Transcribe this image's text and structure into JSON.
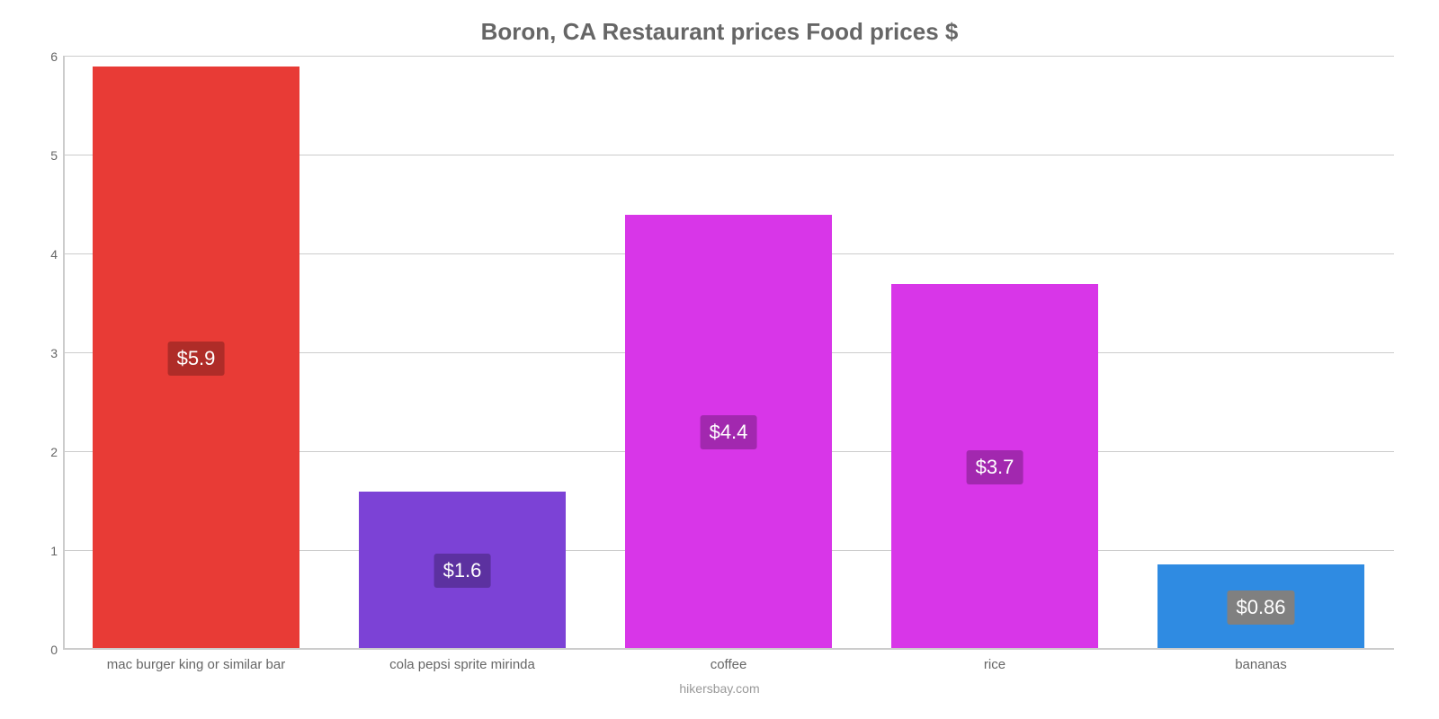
{
  "chart": {
    "type": "bar",
    "title": "Boron, CA Restaurant prices Food prices $",
    "footer": "hikersbay.com",
    "background_color": "#ffffff",
    "grid_color": "#cccccc",
    "text_color": "#666666",
    "title_fontsize": 26,
    "label_fontsize": 15,
    "value_label_fontsize": 22,
    "y": {
      "min": 0,
      "max": 6,
      "ticks": [
        0,
        1,
        2,
        3,
        4,
        5,
        6
      ]
    },
    "bars": [
      {
        "category": "mac burger king or similar bar",
        "value": 5.9,
        "display": "$5.9",
        "fill": "#e83b36",
        "label_bg": "#af2c28"
      },
      {
        "category": "cola pepsi sprite mirinda",
        "value": 1.6,
        "display": "$1.6",
        "fill": "#7c42d6",
        "label_bg": "#5c31a0"
      },
      {
        "category": "coffee",
        "value": 4.4,
        "display": "$4.4",
        "fill": "#d836e8",
        "label_bg": "#a228af"
      },
      {
        "category": "rice",
        "value": 3.7,
        "display": "$3.7",
        "fill": "#d836e8",
        "label_bg": "#a228af"
      },
      {
        "category": "bananas",
        "value": 0.86,
        "display": "$0.86",
        "fill": "#2f8be2",
        "label_bg": "#808080"
      }
    ],
    "bar_width_pct": 78,
    "value_label_vpos": 0.5
  }
}
